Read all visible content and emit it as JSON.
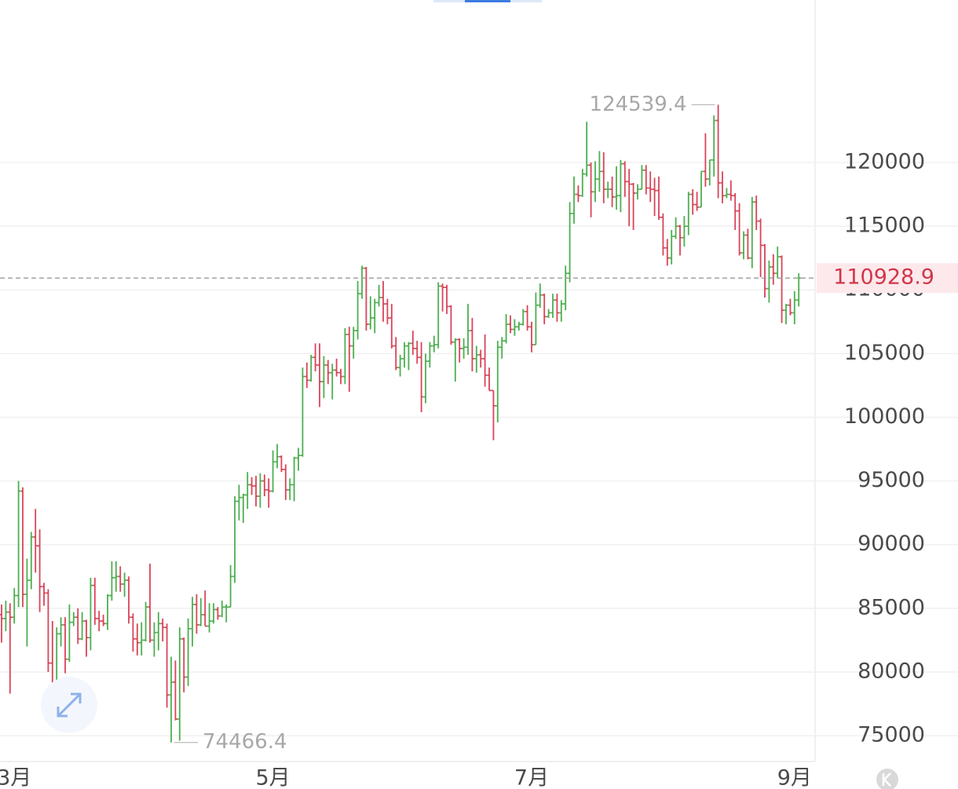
{
  "chart_data": {
    "type": "ohlc",
    "up_color": "#4caf50",
    "down_color": "#d94459",
    "ylim": [
      72970,
      132760
    ],
    "yticks": [
      75000,
      80000,
      85000,
      90000,
      95000,
      100000,
      105000,
      110000,
      115000,
      120000
    ],
    "grid": true,
    "categories": [
      null,
      null,
      null,
      "3月",
      null,
      null,
      null,
      null,
      null,
      null,
      null,
      null,
      null,
      null,
      null,
      null,
      null,
      null,
      null,
      null,
      null,
      null,
      null,
      null,
      null,
      null,
      null,
      null,
      null,
      null,
      null,
      null,
      null,
      null,
      null,
      null,
      null,
      null,
      null,
      null,
      null,
      null,
      null,
      null,
      null,
      null,
      null,
      null,
      null,
      null,
      null,
      null,
      null,
      null,
      null,
      null,
      null,
      null,
      null,
      null,
      null,
      null,
      null,
      null,
      "5月",
      null,
      null,
      null,
      null,
      null,
      null,
      null,
      null,
      null,
      null,
      null,
      null,
      null,
      null,
      null,
      null,
      null,
      null,
      null,
      null,
      null,
      null,
      null,
      null,
      null,
      null,
      null,
      null,
      null,
      null,
      null,
      null,
      null,
      null,
      null,
      null,
      null,
      null,
      null,
      null,
      null,
      null,
      null,
      null,
      null,
      null,
      null,
      null,
      null,
      null,
      null,
      null,
      null,
      null,
      null,
      null,
      null,
      null,
      null,
      null,
      "7月",
      null,
      null,
      null,
      null,
      null,
      null,
      null,
      null,
      null,
      null,
      null,
      null,
      null,
      null,
      null,
      null,
      null,
      null,
      null,
      null,
      null,
      null,
      null,
      null,
      null,
      null,
      null,
      null,
      null,
      null,
      null,
      null,
      null,
      null,
      null,
      null,
      null,
      null,
      null,
      null,
      null,
      null,
      null,
      null,
      null,
      null,
      null,
      null,
      null,
      null,
      null,
      null,
      null,
      null,
      null,
      null,
      null,
      null,
      null,
      null,
      null,
      "9月",
      null
    ],
    "ohlc": [
      [
        84500,
        85300,
        82300,
        84200
      ],
      [
        84200,
        85600,
        83200,
        84700
      ],
      [
        84700,
        85400,
        78300,
        84300
      ],
      [
        84300,
        86600,
        83800,
        86000
      ],
      [
        86000,
        95000,
        85100,
        94200
      ],
      [
        94200,
        94500,
        85100,
        86100
      ],
      [
        86100,
        88900,
        82000,
        87200
      ],
      [
        87200,
        91000,
        86500,
        90600
      ],
      [
        90600,
        92800,
        87800,
        89900
      ],
      [
        89900,
        91200,
        84700,
        86700
      ],
      [
        86700,
        87000,
        85200,
        86200
      ],
      [
        86200,
        86500,
        80000,
        80700
      ],
      [
        80700,
        84000,
        77400,
        78500
      ],
      [
        78500,
        83500,
        76600,
        83000
      ],
      [
        83000,
        84300,
        82000,
        83700
      ],
      [
        83700,
        84300,
        79900,
        81000
      ],
      [
        81000,
        85300,
        80800,
        83900
      ],
      [
        83900,
        84700,
        83600,
        84300
      ],
      [
        84300,
        85000,
        82200,
        82600
      ],
      [
        82600,
        84700,
        82500,
        84000
      ],
      [
        84000,
        84100,
        81200,
        82700
      ],
      [
        82700,
        87400,
        81700,
        86800
      ],
      [
        86800,
        87400,
        83700,
        84200
      ],
      [
        84200,
        84800,
        83200,
        84000
      ],
      [
        84000,
        84500,
        83600,
        83800
      ],
      [
        83800,
        86100,
        83300,
        86000
      ],
      [
        86000,
        88700,
        85600,
        87400
      ],
      [
        87400,
        88700,
        86300,
        87500
      ],
      [
        87500,
        88300,
        86300,
        86900
      ],
      [
        86900,
        87800,
        85900,
        87200
      ],
      [
        87200,
        87500,
        83800,
        84300
      ],
      [
        84300,
        84600,
        81600,
        82600
      ],
      [
        82600,
        83800,
        81300,
        82300
      ],
      [
        82300,
        83900,
        81300,
        82500
      ],
      [
        82500,
        85500,
        82400,
        85100
      ],
      [
        85100,
        88500,
        82300,
        82500
      ],
      [
        82500,
        83900,
        81200,
        83100
      ],
      [
        83100,
        84700,
        81700,
        83800
      ],
      [
        83800,
        84200,
        82400,
        83500
      ],
      [
        83500,
        83800,
        77200,
        78200
      ],
      [
        78200,
        81200,
        74466.4,
        79200
      ],
      [
        79200,
        80900,
        76200,
        76300
      ],
      [
        76300,
        83500,
        74600,
        82600
      ],
      [
        82600,
        82700,
        78400,
        79600
      ],
      [
        79600,
        84200,
        78900,
        83400
      ],
      [
        83400,
        85900,
        82000,
        85300
      ],
      [
        85300,
        86100,
        83000,
        83700
      ],
      [
        83700,
        85800,
        83600,
        84500
      ],
      [
        84500,
        86400,
        83600,
        83600
      ],
      [
        83600,
        85400,
        83100,
        84000
      ],
      [
        84000,
        85400,
        83800,
        84900
      ],
      [
        84900,
        85100,
        84100,
        84400
      ],
      [
        84400,
        85600,
        84300,
        85100
      ],
      [
        85100,
        85300,
        83900,
        85100
      ],
      [
        85100,
        88400,
        85100,
        87500
      ],
      [
        87500,
        93800,
        87000,
        93400
      ],
      [
        93400,
        94700,
        91900,
        93700
      ],
      [
        93700,
        94000,
        91700,
        93900
      ],
      [
        93900,
        95700,
        92800,
        94700
      ],
      [
        94700,
        95300,
        93900,
        94600
      ],
      [
        94600,
        95400,
        93000,
        93800
      ],
      [
        93800,
        95600,
        92900,
        95000
      ],
      [
        95000,
        95500,
        93800,
        94300
      ],
      [
        94300,
        95200,
        92900,
        94200
      ],
      [
        94200,
        97400,
        94100,
        96500
      ],
      [
        96500,
        97900,
        96000,
        96900
      ],
      [
        96900,
        97000,
        95700,
        95900
      ],
      [
        95900,
        96300,
        93500,
        94300
      ],
      [
        94300,
        95200,
        93500,
        94700
      ],
      [
        94700,
        96900,
        93400,
        96800
      ],
      [
        96800,
        97600,
        95800,
        97000
      ],
      [
        97000,
        103900,
        96900,
        103200
      ],
      [
        103200,
        104300,
        102300,
        102900
      ],
      [
        102900,
        104900,
        102800,
        104700
      ],
      [
        104700,
        105800,
        103600,
        104100
      ],
      [
        104100,
        105800,
        100800,
        102800
      ],
      [
        102800,
        104800,
        101500,
        104100
      ],
      [
        104100,
        104500,
        102600,
        103500
      ],
      [
        103500,
        104200,
        101400,
        103700
      ],
      [
        103700,
        104600,
        103200,
        103500
      ],
      [
        103500,
        103800,
        102600,
        103200
      ],
      [
        103200,
        107000,
        102600,
        106500
      ],
      [
        106500,
        107100,
        102000,
        105600
      ],
      [
        105600,
        107100,
        104600,
        106800
      ],
      [
        106800,
        110700,
        106100,
        109700
      ],
      [
        109700,
        111900,
        109300,
        111700
      ],
      [
        111700,
        111800,
        106800,
        107300
      ],
      [
        107300,
        109500,
        106900,
        107800
      ],
      [
        107800,
        109300,
        106600,
        109000
      ],
      [
        109000,
        110400,
        108700,
        109400
      ],
      [
        109400,
        110700,
        107500,
        108900
      ],
      [
        108900,
        109300,
        107300,
        107800
      ],
      [
        107800,
        108900,
        105400,
        105600
      ],
      [
        105600,
        106300,
        103700,
        103900
      ],
      [
        103900,
        104900,
        103200,
        104600
      ],
      [
        104600,
        105900,
        103900,
        105600
      ],
      [
        105600,
        105900,
        103700,
        105800
      ],
      [
        105800,
        106800,
        104900,
        105400
      ],
      [
        105400,
        106000,
        104200,
        104700
      ],
      [
        104700,
        105900,
        100400,
        101600
      ],
      [
        101600,
        105000,
        101100,
        104400
      ],
      [
        104400,
        105900,
        103900,
        105600
      ],
      [
        105600,
        106400,
        105100,
        105700
      ],
      [
        105700,
        110600,
        105400,
        110300
      ],
      [
        110300,
        110500,
        108300,
        110200
      ],
      [
        110200,
        110400,
        108100,
        108700
      ],
      [
        108700,
        108800,
        105700,
        105900
      ],
      [
        105900,
        106200,
        102800,
        106100
      ],
      [
        106100,
        106200,
        104300,
        105400
      ],
      [
        105400,
        106200,
        104600,
        105500
      ],
      [
        105500,
        108900,
        104900,
        106800
      ],
      [
        106800,
        107800,
        103600,
        104600
      ],
      [
        104600,
        105600,
        103500,
        104900
      ],
      [
        104900,
        105300,
        103900,
        104600
      ],
      [
        104600,
        106500,
        102400,
        103300
      ],
      [
        103300,
        103900,
        102100,
        102100
      ],
      [
        102100,
        102100,
        98200,
        100900
      ],
      [
        100900,
        106000,
        99600,
        105500
      ],
      [
        105500,
        106300,
        104600,
        106000
      ],
      [
        106000,
        108100,
        105800,
        107300
      ],
      [
        107300,
        108000,
        106600,
        106900
      ],
      [
        106900,
        107700,
        106400,
        107100
      ],
      [
        107100,
        107500,
        106800,
        107300
      ],
      [
        107300,
        108500,
        107200,
        108300
      ],
      [
        108300,
        108800,
        106800,
        107100
      ],
      [
        107100,
        107500,
        105100,
        105700
      ],
      [
        105700,
        109800,
        105700,
        108800
      ],
      [
        108800,
        110500,
        108600,
        109600
      ],
      [
        109600,
        109700,
        107300,
        107900
      ],
      [
        107900,
        108500,
        107800,
        108200
      ],
      [
        108200,
        109700,
        107800,
        109200
      ],
      [
        109200,
        109700,
        107500,
        108200
      ],
      [
        108200,
        109200,
        107500,
        108900
      ],
      [
        108900,
        111900,
        108400,
        111300
      ],
      [
        111300,
        116900,
        110600,
        116000
      ],
      [
        116000,
        118900,
        115200,
        117500
      ],
      [
        117500,
        118200,
        116900,
        117400
      ],
      [
        117400,
        119500,
        117300,
        119100
      ],
      [
        119100,
        123200,
        118900,
        119800
      ],
      [
        119800,
        120000,
        115700,
        117700
      ],
      [
        117700,
        120100,
        116900,
        118700
      ],
      [
        118700,
        120900,
        117700,
        119300
      ],
      [
        119300,
        120800,
        116800,
        117900
      ],
      [
        117900,
        118500,
        117200,
        117900
      ],
      [
        117900,
        118900,
        116500,
        117300
      ],
      [
        117300,
        119700,
        116300,
        117400
      ],
      [
        117400,
        120200,
        116100,
        119900
      ],
      [
        119900,
        120100,
        117300,
        118500
      ],
      [
        118500,
        119500,
        115000,
        118300
      ],
      [
        118300,
        118400,
        114700,
        117600
      ],
      [
        117600,
        118300,
        117100,
        117900
      ],
      [
        117900,
        119800,
        117900,
        119400
      ],
      [
        119400,
        119800,
        117500,
        118000
      ],
      [
        118000,
        119300,
        116900,
        117900
      ],
      [
        117900,
        118800,
        115800,
        117800
      ],
      [
        117800,
        118900,
        115500,
        115700
      ],
      [
        115700,
        116000,
        112700,
        113300
      ],
      [
        113300,
        114000,
        111900,
        112500
      ],
      [
        112500,
        114700,
        112000,
        114200
      ],
      [
        114200,
        115700,
        114000,
        115000
      ],
      [
        115000,
        115100,
        112700,
        114100
      ],
      [
        114100,
        115800,
        113400,
        115000
      ],
      [
        115000,
        117700,
        114300,
        117500
      ],
      [
        117500,
        117900,
        115900,
        116700
      ],
      [
        116700,
        117700,
        116200,
        116500
      ],
      [
        116500,
        119300,
        116500,
        119300
      ],
      [
        119300,
        122300,
        118100,
        118700
      ],
      [
        118700,
        120200,
        118200,
        120200
      ],
      [
        120200,
        123700,
        118900,
        123300
      ],
      [
        123300,
        124539.4,
        117200,
        118400
      ],
      [
        118400,
        119300,
        116800,
        117400
      ],
      [
        117400,
        118000,
        117200,
        117500
      ],
      [
        117500,
        118600,
        117000,
        117400
      ],
      [
        117400,
        117600,
        114700,
        116200
      ],
      [
        116200,
        116800,
        112700,
        112900
      ],
      [
        112900,
        114600,
        112400,
        114300
      ],
      [
        114300,
        114800,
        112400,
        112500
      ],
      [
        112500,
        117300,
        111700,
        116900
      ],
      [
        116900,
        117400,
        114700,
        115400
      ],
      [
        115400,
        115600,
        111000,
        113500
      ],
      [
        113500,
        113600,
        109400,
        110100
      ],
      [
        110100,
        112300,
        109000,
        111800
      ],
      [
        111800,
        112800,
        110400,
        111300
      ],
      [
        111300,
        113400,
        110900,
        112600
      ],
      [
        112600,
        112700,
        107400,
        108400
      ],
      [
        108400,
        108900,
        107300,
        108800
      ],
      [
        108800,
        109300,
        108000,
        108200
      ],
      [
        108200,
        109900,
        107300,
        109200
      ],
      [
        109200,
        111300,
        108700,
        110928.9
      ]
    ]
  }
}
